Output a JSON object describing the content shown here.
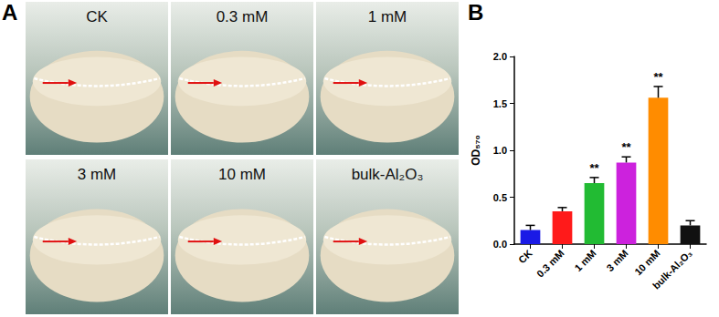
{
  "figure": {
    "panel_labels": [
      "A",
      "B"
    ],
    "photo_labels": [
      "CK",
      "0.3 mM",
      "1 mM",
      "3 mM",
      "10 mM",
      "bulk-Al₂O₃"
    ]
  },
  "chart_data": {
    "type": "bar",
    "y_label": "OD₅₇₀",
    "categories": [
      "CK",
      "0.3 mM",
      "1 mM",
      "3 mM",
      "10 mM",
      "bulk-Al₂O₃"
    ],
    "values": [
      0.15,
      0.35,
      0.65,
      0.87,
      1.56,
      0.2
    ],
    "errors": [
      0.05,
      0.04,
      0.06,
      0.06,
      0.12,
      0.05
    ],
    "annotations": [
      null,
      null,
      "**",
      "**",
      "**",
      null
    ],
    "colors": [
      "#1a1ae6",
      "#ff1a1a",
      "#22bb33",
      "#cc22dd",
      "#ff8c00",
      "#111111"
    ],
    "ylim": [
      0,
      2
    ],
    "yticks": [
      {
        "value": 0,
        "label": "0.0"
      },
      0.5,
      {
        "value": 1,
        "label": "1.0"
      },
      1.5,
      {
        "value": 2,
        "label": "2.0"
      }
    ],
    "grid": false
  }
}
